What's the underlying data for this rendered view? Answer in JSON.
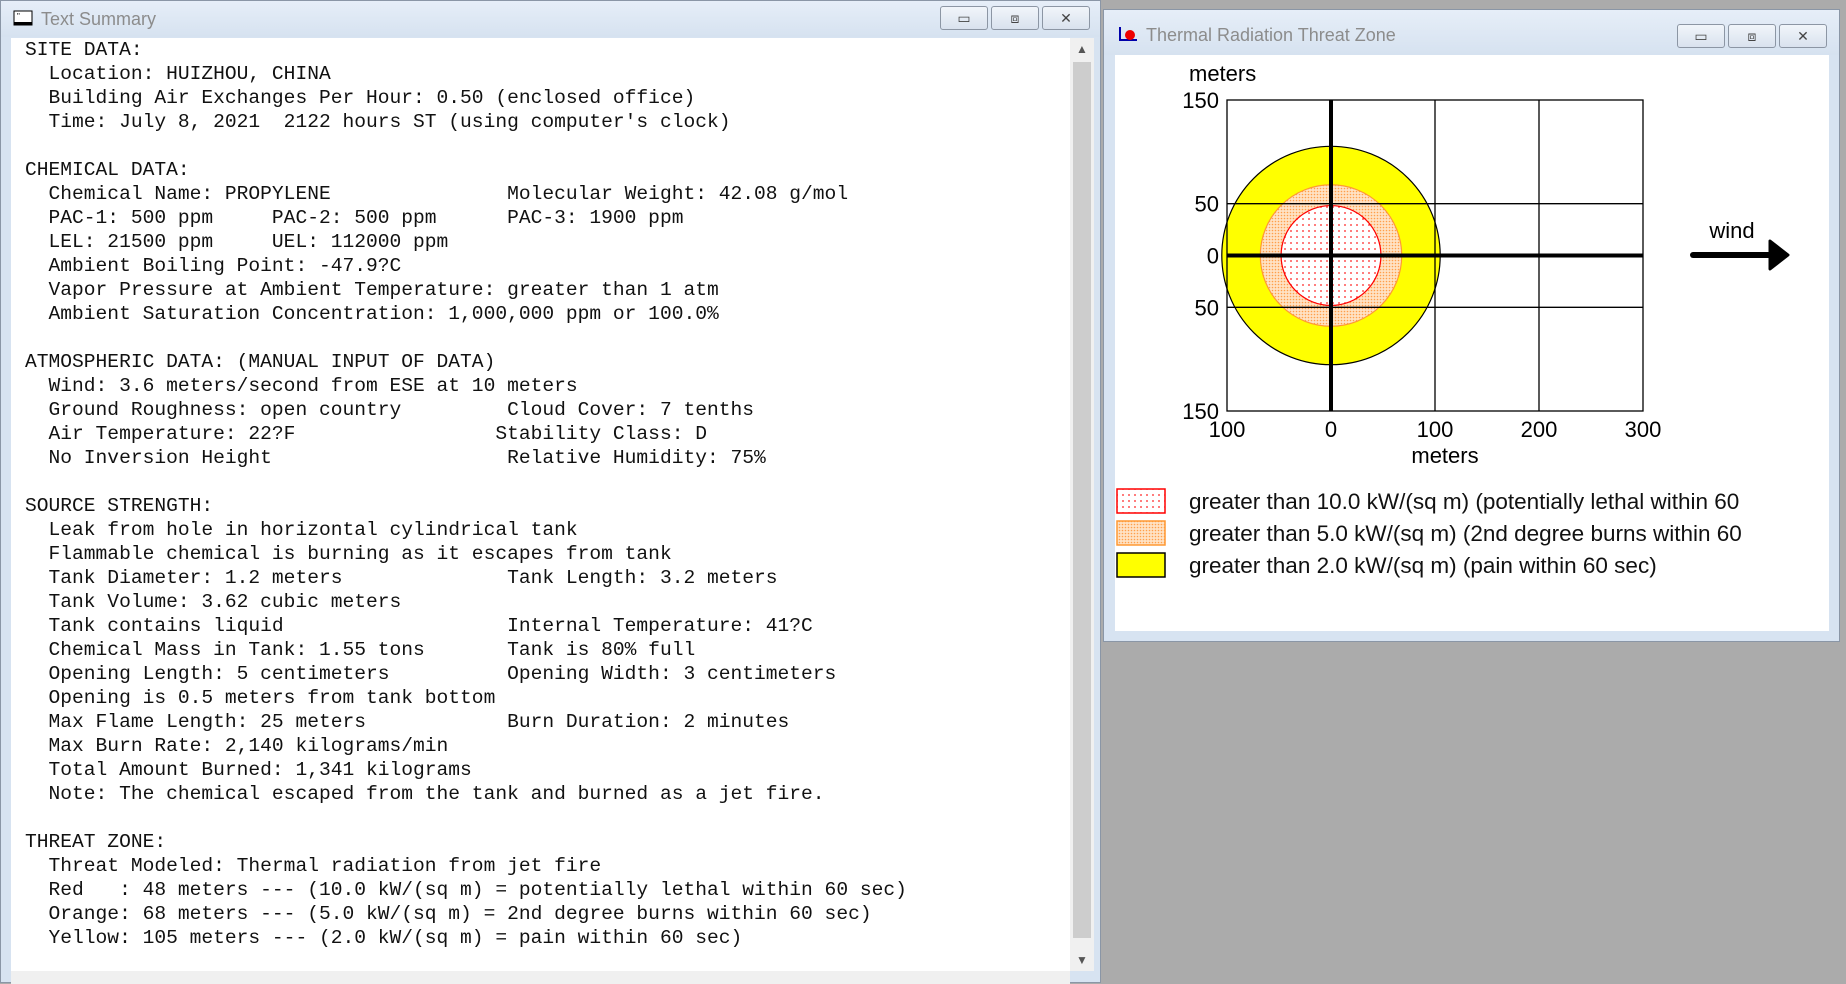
{
  "text_window": {
    "title": "Text Summary",
    "lines": [
      "SITE DATA:",
      "  Location: HUIZHOU, CHINA",
      "  Building Air Exchanges Per Hour: 0.50 (enclosed office)",
      "  Time: July 8, 2021  2122 hours ST (using computer's clock)",
      "",
      "CHEMICAL DATA:",
      "  Chemical Name: PROPYLENE               Molecular Weight: 42.08 g/mol",
      "  PAC-1: 500 ppm     PAC-2: 500 ppm      PAC-3: 1900 ppm",
      "  LEL: 21500 ppm     UEL: 112000 ppm",
      "  Ambient Boiling Point: -47.9?C",
      "  Vapor Pressure at Ambient Temperature: greater than 1 atm",
      "  Ambient Saturation Concentration: 1,000,000 ppm or 100.0%",
      "",
      "ATMOSPHERIC DATA: (MANUAL INPUT OF DATA)",
      "  Wind: 3.6 meters/second from ESE at 10 meters",
      "  Ground Roughness: open country         Cloud Cover: 7 tenths",
      "  Air Temperature: 22?F                 Stability Class: D",
      "  No Inversion Height                    Relative Humidity: 75%",
      "",
      "SOURCE STRENGTH:",
      "  Leak from hole in horizontal cylindrical tank",
      "  Flammable chemical is burning as it escapes from tank",
      "  Tank Diameter: 1.2 meters              Tank Length: 3.2 meters",
      "  Tank Volume: 3.62 cubic meters",
      "  Tank contains liquid                   Internal Temperature: 41?C",
      "  Chemical Mass in Tank: 1.55 tons       Tank is 80% full",
      "  Opening Length: 5 centimeters          Opening Width: 3 centimeters",
      "  Opening is 0.5 meters from tank bottom",
      "  Max Flame Length: 25 meters            Burn Duration: 2 minutes",
      "  Max Burn Rate: 2,140 kilograms/min",
      "  Total Amount Burned: 1,341 kilograms",
      "  Note: The chemical escaped from the tank and burned as a jet fire.",
      "",
      "THREAT ZONE:",
      "  Threat Modeled: Thermal radiation from jet fire",
      "  Red   : 48 meters --- (10.0 kW/(sq m) = potentially lethal within 60 sec)",
      "  Orange: 68 meters --- (5.0 kW/(sq m) = 2nd degree burns within 60 sec)",
      "  Yellow: 105 meters --- (2.0 kW/(sq m) = pain within 60 sec)"
    ]
  },
  "threat_window": {
    "title": "Thermal Radiation Threat Zone",
    "wind_label": "wind",
    "legend": [
      {
        "label": "greater than 10.0 kW/(sq m) (potentially lethal within 60",
        "color": "#ff0000"
      },
      {
        "label": "greater than 5.0 kW/(sq m) (2nd degree burns within 60",
        "color": "#ff9933"
      },
      {
        "label": "greater than 2.0 kW/(sq m) (pain within 60 sec)",
        "color": "#ffff00"
      }
    ]
  },
  "chart_data": {
    "type": "area",
    "xlabel": "meters",
    "ylabel": "meters",
    "xlim": [
      -100,
      300
    ],
    "ylim": [
      -150,
      150
    ],
    "x_ticks": [
      -100,
      0,
      100,
      200,
      300
    ],
    "x_tick_labels": [
      "100",
      "0",
      "100",
      "200",
      "300"
    ],
    "y_ticks": [
      150,
      50,
      0,
      -50,
      -150
    ],
    "y_tick_labels": [
      "150",
      "50",
      "0",
      "50",
      "150"
    ],
    "grid": true,
    "zones": [
      {
        "name": "Yellow",
        "radius": 105,
        "fill": "#ffff00",
        "edge": "#000000"
      },
      {
        "name": "Orange",
        "radius": 68,
        "fill": "#ffcc99",
        "edge": "#ff9933"
      },
      {
        "name": "Red",
        "radius": 48,
        "fill": "#ffffff",
        "edge": "#ff0000"
      }
    ],
    "wind_direction": "right"
  }
}
